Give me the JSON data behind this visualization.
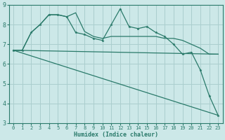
{
  "xlabel": "Humidex (Indice chaleur)",
  "bg_color": "#cce8e8",
  "line_color": "#2a7a6a",
  "grid_color": "#aacece",
  "axis_color": "#2a7a6a",
  "xlim": [
    -0.5,
    23.5
  ],
  "ylim": [
    3,
    9
  ],
  "xticks": [
    0,
    1,
    2,
    3,
    4,
    5,
    6,
    7,
    8,
    9,
    10,
    11,
    12,
    13,
    14,
    15,
    16,
    17,
    18,
    19,
    20,
    21,
    22,
    23
  ],
  "yticks": [
    3,
    4,
    5,
    6,
    7,
    8,
    9
  ],
  "line0_x": [
    0,
    1,
    2,
    3,
    4,
    5,
    6,
    7,
    8,
    9,
    10,
    11,
    12,
    13,
    14,
    15,
    16,
    17,
    18,
    19,
    20,
    21,
    22,
    23
  ],
  "line0_y": [
    6.7,
    6.7,
    7.6,
    8.0,
    8.5,
    8.5,
    8.4,
    8.6,
    7.65,
    7.4,
    7.3,
    7.4,
    7.4,
    7.4,
    7.4,
    7.4,
    7.4,
    7.3,
    7.3,
    7.2,
    7.0,
    6.8,
    6.5,
    6.5
  ],
  "line1_x": [
    0,
    1,
    2,
    3,
    4,
    5,
    6,
    7,
    8,
    9,
    10,
    11,
    12,
    13,
    14,
    15,
    16,
    17,
    18,
    19,
    20,
    21,
    22,
    23
  ],
  "line1_y": [
    6.7,
    6.7,
    7.6,
    8.0,
    8.5,
    8.5,
    8.4,
    7.6,
    7.5,
    7.3,
    7.2,
    8.0,
    8.8,
    7.9,
    7.8,
    7.9,
    7.6,
    7.4,
    7.0,
    6.5,
    6.6,
    5.7,
    4.4,
    3.4
  ],
  "line2_x": [
    0,
    23
  ],
  "line2_y": [
    6.7,
    3.4
  ],
  "line3_x": [
    0,
    23
  ],
  "line3_y": [
    6.7,
    6.5
  ],
  "xlabel_fontsize": 6,
  "tick_fontsize": 5,
  "ytick_fontsize": 6
}
